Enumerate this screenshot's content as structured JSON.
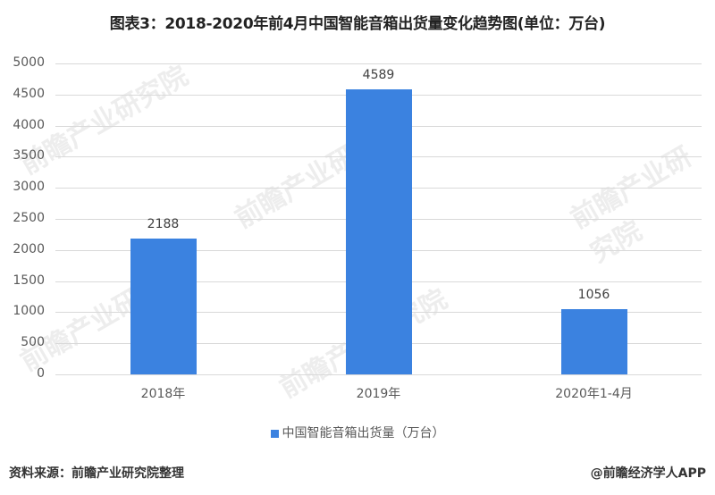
{
  "title": "图表3：2018-2020年前4月中国智能音箱出货量变化趋势图(单位：万台)",
  "chart_data": {
    "type": "bar",
    "title": "图表3：2018-2020年前4月中国智能音箱出货量变化趋势图(单位：万台)",
    "categories": [
      "2018年",
      "2019年",
      "2020年1-4月"
    ],
    "series": [
      {
        "name": "中国智能音箱出货量（万台）",
        "values": [
          2188,
          4589,
          1056
        ],
        "color": "#3b82e0"
      }
    ],
    "xlabel": "",
    "ylabel": "",
    "ylim": [
      0,
      5000
    ],
    "yticks": [
      0,
      500,
      1000,
      1500,
      2000,
      2500,
      3000,
      3500,
      4000,
      4500,
      5000
    ],
    "grid": true,
    "legend_position": "bottom",
    "data_labels": [
      "2188",
      "4589",
      "1056"
    ]
  },
  "legend": {
    "label": "中国智能音箱出货量（万台）"
  },
  "yticks": [
    "0",
    "500",
    "1000",
    "1500",
    "2000",
    "2500",
    "3000",
    "3500",
    "4000",
    "4500",
    "5000"
  ],
  "footer": {
    "source": "资料来源：前瞻产业研究院整理",
    "credit": "@前瞻经济学人APP"
  },
  "watermark": "前瞻产业研究院"
}
